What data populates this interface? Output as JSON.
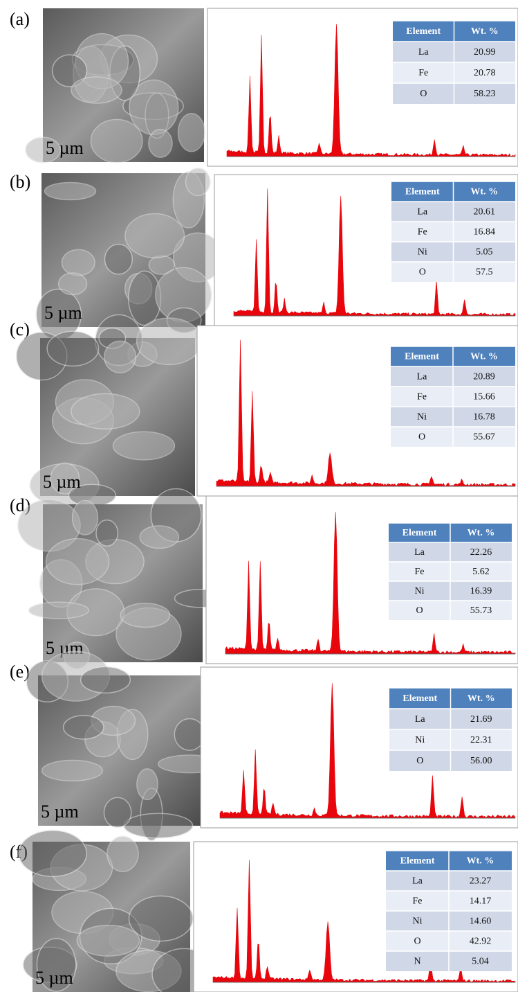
{
  "panels": [
    {
      "label": "(a)",
      "scale_bar": "5 µm",
      "table": {
        "header": [
          "Element",
          "Wt. %"
        ],
        "rows": [
          [
            "La",
            "20.99"
          ],
          [
            "Fe",
            "20.78"
          ],
          [
            "O",
            "58.23"
          ]
        ]
      }
    },
    {
      "label": "(b)",
      "scale_bar": "5 µm",
      "table": {
        "header": [
          "Element",
          "Wt. %"
        ],
        "rows": [
          [
            "La",
            "20.61"
          ],
          [
            "Fe",
            "16.84"
          ],
          [
            "Ni",
            "5.05"
          ],
          [
            "O",
            "57.5"
          ]
        ]
      }
    },
    {
      "label": "(c)",
      "scale_bar": "5 µm",
      "table": {
        "header": [
          "Element",
          "Wt. %"
        ],
        "rows": [
          [
            "La",
            "20.89"
          ],
          [
            "Fe",
            "15.66"
          ],
          [
            "Ni",
            "16.78"
          ],
          [
            "O",
            "55.67"
          ]
        ]
      }
    },
    {
      "label": "(d)",
      "scale_bar": "5 µm",
      "table": {
        "header": [
          "Element",
          "Wt. %"
        ],
        "rows": [
          [
            "La",
            "22.26"
          ],
          [
            "Fe",
            "5.62"
          ],
          [
            "Ni",
            "16.39"
          ],
          [
            "O",
            "55.73"
          ]
        ]
      }
    },
    {
      "label": "(e)",
      "scale_bar": "5 µm",
      "table": {
        "header": [
          "Element",
          "Wt. %"
        ],
        "rows": [
          [
            "La",
            "21.69"
          ],
          [
            "Ni",
            "22.31"
          ],
          [
            "O",
            "56.00"
          ]
        ]
      }
    },
    {
      "label": "(f)",
      "scale_bar": "5 µm",
      "table": {
        "header": [
          "Element",
          "Wt. %"
        ],
        "rows": [
          [
            "La",
            "23.27"
          ],
          [
            "Fe",
            "14.17"
          ],
          [
            "Ni",
            "14.60"
          ],
          [
            "O",
            "42.92"
          ],
          [
            "N",
            "5.04"
          ]
        ]
      }
    }
  ]
}
